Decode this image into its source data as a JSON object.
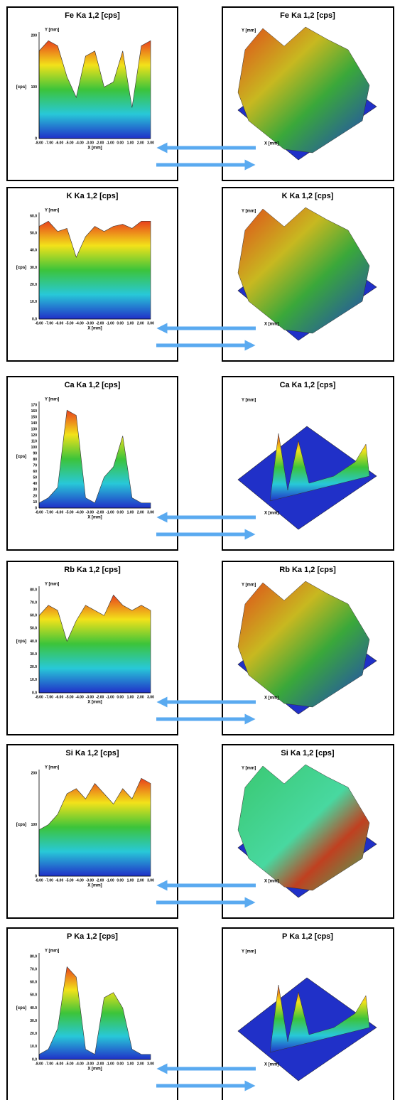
{
  "panels": [
    {
      "left": {
        "title": "Fe Ka 1,2 [cps]",
        "value_label": "[cps]",
        "x_label": "X [mm]",
        "y_label": "Y [mm]",
        "yticks": [
          "0",
          "100",
          "200"
        ],
        "xticks": [
          "-8.00",
          "-7.00",
          "-6.00",
          "-5.00",
          "-4.00",
          "-3.00",
          "-2.00",
          "-1.00",
          "0.00",
          "1.00",
          "2.00",
          "3.00"
        ]
      },
      "right": {
        "title": "Fe Ka 1,2 [cps]",
        "x_label": "X [mm]",
        "y_label": "Y [mm]"
      }
    },
    {
      "left": {
        "title": "K Ka 1,2 [cps]",
        "value_label": "[cps]",
        "x_label": "X [mm]",
        "y_label": "Y [mm]",
        "yticks": [
          "0.0",
          "10.0",
          "20.0",
          "30.0",
          "40.0",
          "50.0",
          "60.0"
        ],
        "xticks": [
          "-8.00",
          "-7.00",
          "-6.00",
          "-5.00",
          "-4.00",
          "-3.00",
          "-2.00",
          "-1.00",
          "0.00",
          "1.00",
          "2.00",
          "3.00"
        ]
      },
      "right": {
        "title": "K Ka 1,2 [cps]",
        "x_label": "X [mm]",
        "y_label": "Y [mm]"
      }
    },
    {
      "left": {
        "title": "Ca Ka 1,2 [cps]",
        "value_label": "[cps]",
        "x_label": "X [mm]",
        "y_label": "Y [mm]",
        "yticks": [
          "0",
          "10",
          "20",
          "30",
          "40",
          "50",
          "60",
          "70",
          "80",
          "90",
          "100",
          "110",
          "120",
          "130",
          "140",
          "150",
          "160",
          "170"
        ],
        "xticks": [
          "-8.00",
          "-7.00",
          "-6.00",
          "-5.00",
          "-4.00",
          "-3.00",
          "-2.00",
          "-1.00",
          "0.00",
          "1.00",
          "2.00",
          "3.00"
        ]
      },
      "right": {
        "title": "Ca Ka 1,2 [cps]",
        "x_label": "X [mm]",
        "y_label": "Y [mm]"
      }
    },
    {
      "left": {
        "title": "Rb Ka 1,2 [cps]",
        "value_label": "[cps]",
        "x_label": "X [mm]",
        "y_label": "Y [mm]",
        "yticks": [
          "0.0",
          "10.0",
          "20.0",
          "30.0",
          "40.0",
          "50.0",
          "60.0",
          "70.0",
          "80.0"
        ],
        "xticks": [
          "-8.00",
          "-7.00",
          "-6.00",
          "-5.00",
          "-4.00",
          "-3.00",
          "-2.00",
          "-1.00",
          "0.00",
          "1.00",
          "2.00",
          "3.00"
        ]
      },
      "right": {
        "title": "Rb Ka 1,2 [cps]",
        "x_label": "X [mm]",
        "y_label": "Y [mm]"
      }
    },
    {
      "left": {
        "title": "Si Ka 1,2 [cps]",
        "value_label": "[cps]",
        "x_label": "X [mm]",
        "y_label": "Y [mm]",
        "yticks": [
          "0",
          "100",
          "200"
        ],
        "xticks": [
          "-8.00",
          "-7.00",
          "-6.00",
          "-5.00",
          "-4.00",
          "-3.00",
          "-2.00",
          "-1.00",
          "0.00",
          "1.00",
          "2.00",
          "3.00"
        ]
      },
      "right": {
        "title": "Si Ka 1,2 [cps]",
        "x_label": "X [mm]",
        "y_label": "Y [mm]"
      }
    },
    {
      "left": {
        "title": "P Ka 1,2 [cps]",
        "value_label": "[cps]",
        "x_label": "X [mm]",
        "y_label": "Y [mm]",
        "yticks": [
          "0.0",
          "10.0",
          "20.0",
          "30.0",
          "40.0",
          "50.0",
          "60.0",
          "70.0",
          "80.0"
        ],
        "xticks": [
          "-8.00",
          "-7.00",
          "-6.00",
          "-5.00",
          "-4.00",
          "-3.00",
          "-2.00",
          "-1.00",
          "0.00",
          "1.00",
          "2.00",
          "3.00"
        ]
      },
      "right": {
        "title": "P Ka 1,2 [cps]",
        "x_label": "X [mm]",
        "y_label": "Y [mm]"
      }
    }
  ]
}
